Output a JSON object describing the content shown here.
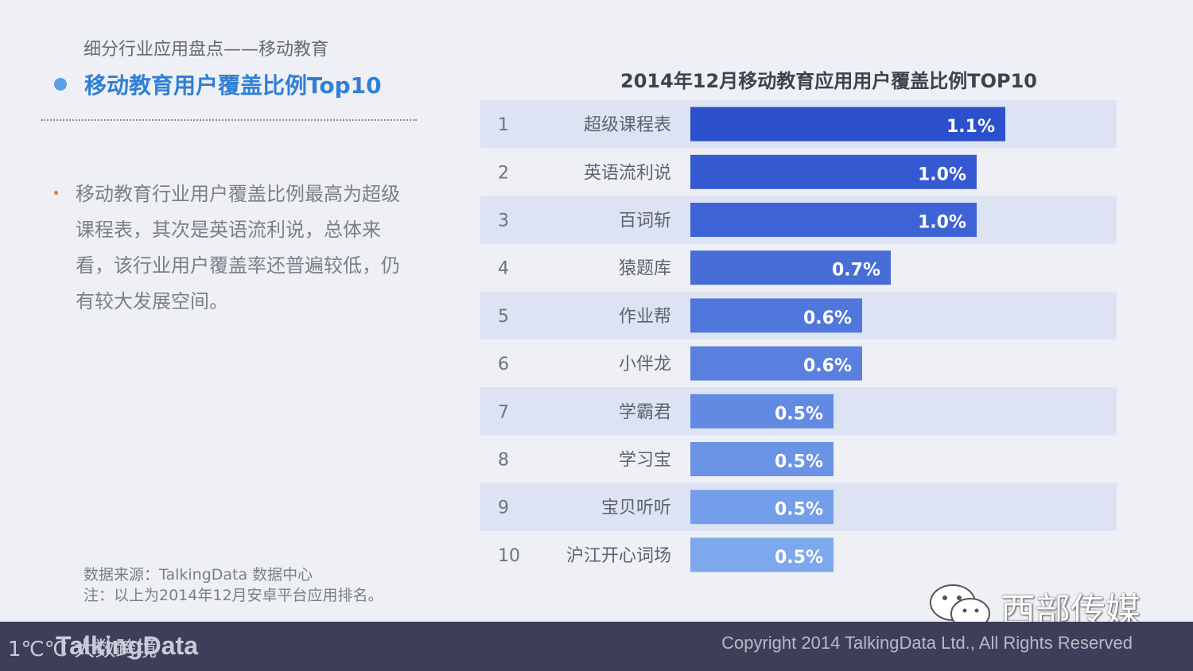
{
  "page": {
    "subtitle": "细分行业应用盘点——移动教育",
    "headline": "移动教育用户覆盖比例Top10",
    "bullet_text": "移动教育行业用户覆盖比例最高为超级课程表，其次是英语流利说，总体来看，该行业用户覆盖率还普遍较低，仍有较大发展空间。",
    "source_line1": "数据来源：TalkingData 数据中心",
    "source_line2": "注：以上为2014年12月安卓平台应用排名。"
  },
  "footer": {
    "badge": "1℃℃ 大数跨境",
    "brand": "TalkingData",
    "copyright": "Copyright 2014 TalkingData Ltd., All Rights Reserved"
  },
  "watermark": {
    "wechat_name": "西部传媒"
  },
  "colors": {
    "accent": "#2f7fd6",
    "bar_dark": "#2c4fcc",
    "bar_light": "#7ea8ee",
    "row_band": "#dde3f2"
  },
  "chart_data": {
    "type": "bar",
    "orientation": "horizontal",
    "title": "2014年12月移动教育应用用户覆盖比例TOP10",
    "ranks": [
      "1",
      "2",
      "3",
      "4",
      "5",
      "6",
      "7",
      "8",
      "9",
      "10"
    ],
    "categories": [
      "超级课程表",
      "英语流利说",
      "百词斩",
      "猿题库",
      "作业帮",
      "小伴龙",
      "学霸君",
      "学习宝",
      "宝贝听听",
      "沪江开心词场"
    ],
    "values": [
      1.1,
      1.0,
      1.0,
      0.7,
      0.6,
      0.6,
      0.5,
      0.5,
      0.5,
      0.5
    ],
    "value_labels": [
      "1.1%",
      "1.0%",
      "1.0%",
      "0.7%",
      "0.6%",
      "0.6%",
      "0.5%",
      "0.5%",
      "0.5%",
      "0.5%"
    ],
    "unit": "%"
  }
}
